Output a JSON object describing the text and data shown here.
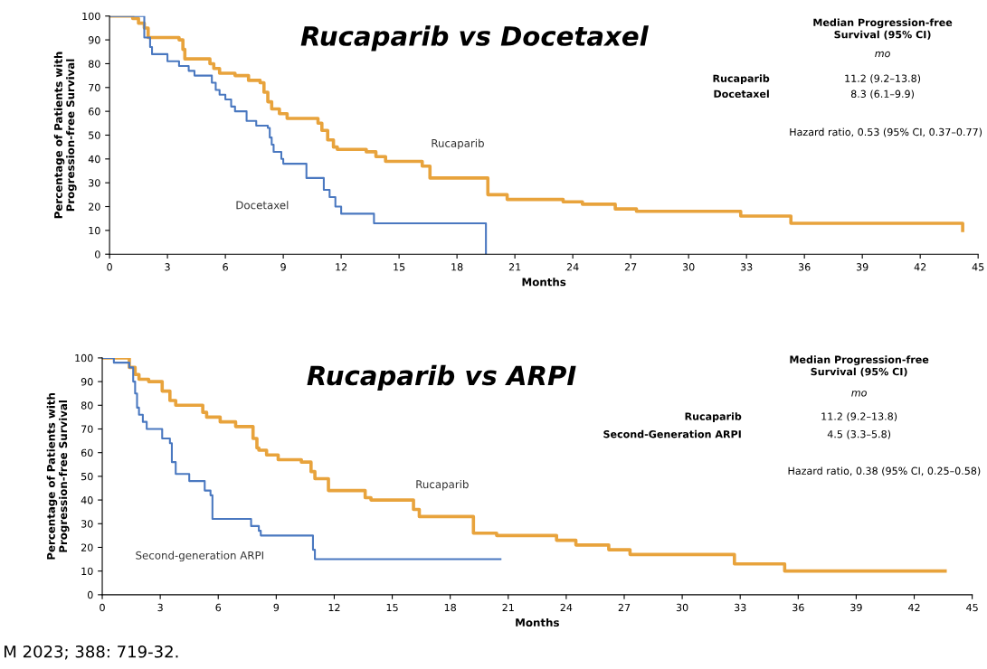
{
  "chart_data": [
    {
      "type": "step",
      "title": "Rucaparib vs Docetaxel",
      "xlabel": "Months",
      "ylabel": "Percentage of Patients with\nProgression-free Survival",
      "xlim": [
        0,
        45
      ],
      "ylim": [
        0,
        100
      ],
      "xticks": [
        0,
        3,
        6,
        9,
        12,
        15,
        18,
        21,
        24,
        27,
        30,
        33,
        36,
        39,
        42,
        45
      ],
      "yticks": [
        0,
        10,
        20,
        30,
        40,
        50,
        60,
        70,
        80,
        90,
        100
      ],
      "grid": false,
      "legend": false,
      "series": [
        {
          "name": "Rucaparib",
          "color": "#e8a33c",
          "x": [
            0,
            1.2,
            1.5,
            1.8,
            2.0,
            3.6,
            3.8,
            3.9,
            5.2,
            5.4,
            5.7,
            6.5,
            7.2,
            7.8,
            8.0,
            8.2,
            8.4,
            8.8,
            9.2,
            10.8,
            11.0,
            11.3,
            11.6,
            11.8,
            13.3,
            13.8,
            14.3,
            16.2,
            16.6,
            19.6,
            20.6,
            23.5,
            24.5,
            26.2,
            27.3,
            32.7,
            35.3,
            44.2
          ],
          "values": [
            100,
            99,
            97,
            95,
            91,
            90,
            86,
            82,
            80,
            78,
            76,
            75,
            73,
            72,
            68,
            64,
            61,
            59,
            57,
            55,
            52,
            48,
            45,
            44,
            43,
            41,
            39,
            37,
            32,
            25,
            23,
            22,
            21,
            19,
            18,
            16,
            13,
            10
          ]
        },
        {
          "name": "Docetaxel",
          "color": "#4a78c0",
          "x": [
            0,
            1.8,
            2.1,
            2.2,
            3.0,
            3.6,
            4.1,
            4.4,
            5.3,
            5.5,
            5.7,
            6.0,
            6.3,
            6.5,
            6.9,
            7.1,
            7.6,
            8.2,
            8.3,
            8.4,
            8.5,
            8.9,
            9.0,
            10.2,
            11.1,
            11.4,
            11.7,
            12.0,
            13.7,
            19.5
          ],
          "values": [
            100,
            91,
            87,
            84,
            81,
            79,
            77,
            75,
            72,
            69,
            67,
            65,
            62,
            60,
            60,
            56,
            54,
            53,
            49,
            46,
            43,
            40,
            38,
            32,
            27,
            24,
            20,
            17,
            13,
            0
          ]
        }
      ],
      "annotations": [
        "Median Progression-free\nSurvival (95% CI)",
        "mo",
        "Rucaparib",
        "11.2 (9.2–13.8)",
        "Docetaxel",
        "8.3 (6.1–9.9)",
        "Hazard ratio, 0.53 (95% CI, 0.37–0.77)"
      ]
    },
    {
      "type": "step",
      "title": "Rucaparib vs ARPI",
      "xlabel": "Months",
      "ylabel": "Percentage of Patients with\nProgression-free Survival",
      "xlim": [
        0,
        45
      ],
      "ylim": [
        0,
        100
      ],
      "xticks": [
        0,
        3,
        6,
        9,
        12,
        15,
        18,
        21,
        24,
        27,
        30,
        33,
        36,
        39,
        42,
        45
      ],
      "yticks": [
        0,
        10,
        20,
        30,
        40,
        50,
        60,
        70,
        80,
        90,
        100
      ],
      "grid": false,
      "legend": false,
      "series": [
        {
          "name": "Rucaparib",
          "color": "#e8a33c",
          "x": [
            0,
            1.4,
            1.7,
            1.9,
            2.4,
            3.1,
            3.5,
            3.8,
            5.2,
            5.4,
            6.1,
            6.9,
            7.8,
            8.0,
            8.1,
            8.5,
            9.1,
            10.3,
            10.8,
            11.0,
            11.7,
            13.6,
            13.9,
            16.1,
            16.4,
            19.2,
            20.4,
            23.5,
            24.5,
            26.2,
            27.3,
            32.7,
            35.3,
            43.6
          ],
          "values": [
            100,
            96,
            93,
            91,
            90,
            86,
            82,
            80,
            77,
            75,
            73,
            71,
            66,
            62,
            61,
            59,
            57,
            56,
            52,
            49,
            44,
            41,
            40,
            36,
            33,
            26,
            25,
            23,
            21,
            19,
            17,
            13,
            10,
            10
          ]
        },
        {
          "name": "Second-generation ARPI",
          "color": "#4a78c0",
          "x": [
            0,
            0.6,
            1.4,
            1.6,
            1.7,
            1.8,
            1.9,
            2.1,
            2.3,
            3.1,
            3.5,
            3.6,
            3.8,
            4.5,
            5.3,
            5.6,
            5.7,
            7.7,
            8.1,
            8.2,
            10.9,
            11.0,
            20.6
          ],
          "values": [
            100,
            98,
            96,
            90,
            85,
            79,
            76,
            73,
            70,
            66,
            64,
            56,
            51,
            48,
            44,
            42,
            32,
            29,
            27,
            25,
            19,
            15,
            15
          ]
        }
      ],
      "annotations": [
        "Median Progression-free\nSurvival (95% CI)",
        "mo",
        "Rucaparib",
        "11.2 (9.2–13.8)",
        "Second-Generation ARPI",
        "4.5 (3.3–5.8)",
        "Hazard ratio, 0.38 (95% CI, 0.25–0.58)",
        "M 2023; 388: 719-32."
      ]
    }
  ]
}
